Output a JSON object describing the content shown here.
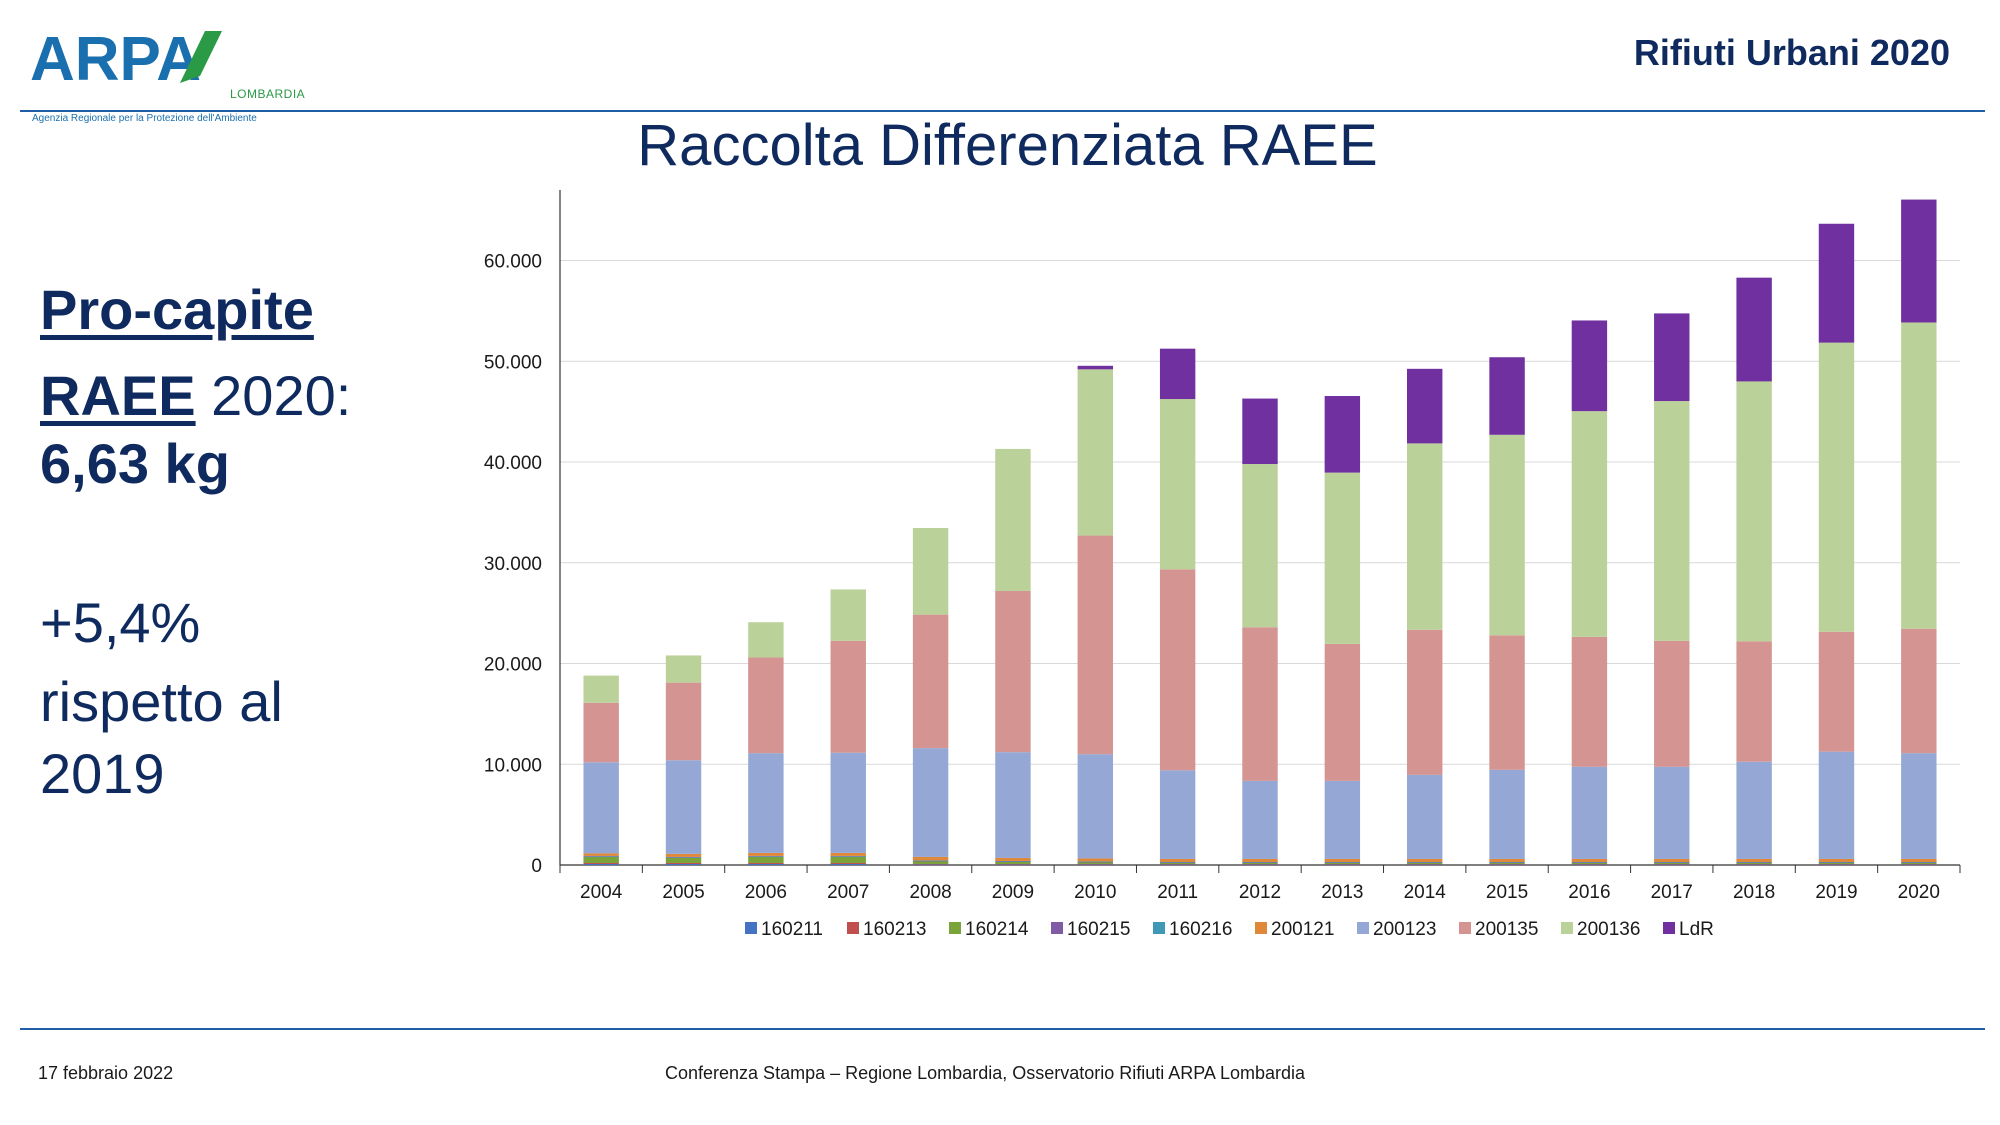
{
  "header": {
    "logo_text": "ARPA",
    "logo_sub": "LOMBARDIA",
    "logo_tagline": "Agenzia Regionale per la Protezione dell'Ambiente",
    "report_title": "Rifiuti Urbani 2020"
  },
  "left_panel": {
    "heading": "Pro-capite",
    "raee_label": "RAEE",
    "year_text": " 2020:",
    "value": "6,63 kg",
    "change": "+5,4%",
    "comparison": "rispetto al 2019"
  },
  "footer": {
    "date": "17 febbraio 2022",
    "center": "Conferenza Stampa – Regione Lombardia, Osservatorio Rifiuti  ARPA Lombardia"
  },
  "colors": {
    "160211": "#4472c4",
    "160213": "#c0504d",
    "160214": "#7aa33a",
    "160215": "#7f5ca3",
    "160216": "#3f98b4",
    "200121": "#e0883a",
    "200123": "#95a8d5",
    "200135": "#d49492",
    "200136": "#bbd19a",
    "LdR": "#7030a0",
    "title": "#0f2a5e",
    "rule": "#1e5fa8"
  },
  "chart_data": {
    "type": "bar",
    "stacked": true,
    "title": "Raccolta Differenziata RAEE",
    "xlabel": "",
    "ylabel": "",
    "ylim": [
      0,
      67000
    ],
    "yticks": [
      0,
      10000,
      20000,
      30000,
      40000,
      50000,
      60000
    ],
    "ytick_labels": [
      "0",
      "10.000",
      "20.000",
      "30.000",
      "40.000",
      "50.000",
      "60.000"
    ],
    "grid": true,
    "legend_position": "bottom",
    "categories": [
      "2004",
      "2005",
      "2006",
      "2007",
      "2008",
      "2009",
      "2010",
      "2011",
      "2012",
      "2013",
      "2014",
      "2015",
      "2016",
      "2017",
      "2018",
      "2019",
      "2020"
    ],
    "series": [
      {
        "name": "160211",
        "values": [
          100,
          100,
          100,
          100,
          50,
          50,
          50,
          50,
          50,
          50,
          50,
          50,
          50,
          50,
          50,
          50,
          50
        ]
      },
      {
        "name": "160213",
        "values": [
          100,
          100,
          100,
          100,
          50,
          50,
          50,
          50,
          50,
          50,
          50,
          50,
          50,
          50,
          50,
          50,
          50
        ]
      },
      {
        "name": "160214",
        "values": [
          600,
          500,
          600,
          600,
          250,
          200,
          150,
          100,
          100,
          100,
          100,
          100,
          100,
          100,
          100,
          100,
          100
        ]
      },
      {
        "name": "160215",
        "values": [
          50,
          50,
          50,
          50,
          50,
          50,
          50,
          50,
          50,
          50,
          50,
          50,
          50,
          50,
          50,
          50,
          50
        ]
      },
      {
        "name": "160216",
        "values": [
          50,
          50,
          50,
          50,
          50,
          50,
          50,
          50,
          50,
          50,
          50,
          50,
          50,
          50,
          50,
          50,
          50
        ]
      },
      {
        "name": "200121",
        "values": [
          250,
          300,
          300,
          300,
          350,
          300,
          300,
          300,
          300,
          300,
          300,
          300,
          300,
          300,
          300,
          300,
          300
        ]
      },
      {
        "name": "200123",
        "values": [
          9050,
          9300,
          9900,
          9950,
          10800,
          10500,
          10350,
          8800,
          7750,
          7750,
          8350,
          8850,
          9150,
          9150,
          9650,
          10650,
          10500
        ]
      },
      {
        "name": "200135",
        "values": [
          5900,
          7700,
          9500,
          11100,
          13250,
          16000,
          21700,
          19950,
          15250,
          13600,
          14400,
          13350,
          12900,
          12500,
          11950,
          11900,
          12350
        ]
      },
      {
        "name": "200136",
        "values": [
          2700,
          2700,
          3500,
          5100,
          8600,
          14100,
          16500,
          16900,
          16200,
          17000,
          18500,
          19900,
          22400,
          23800,
          25800,
          28700,
          30400
        ]
      },
      {
        "name": "LdR",
        "values": [
          0,
          0,
          0,
          0,
          0,
          0,
          350,
          5000,
          6500,
          7600,
          7400,
          7700,
          9000,
          8700,
          10300,
          11800,
          12200
        ]
      }
    ]
  }
}
